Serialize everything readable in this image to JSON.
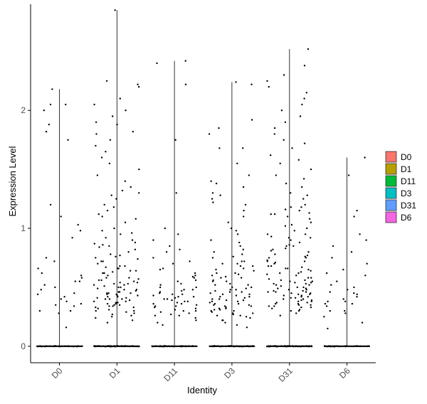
{
  "chart_data": {
    "type": "violin",
    "title": "",
    "xlabel": "Identity",
    "ylabel": "Expression Level",
    "ylim": [
      -0.14,
      2.9
    ],
    "yticks": [
      0,
      1,
      2
    ],
    "categories": [
      "D0",
      "D1",
      "D11",
      "D3",
      "D31",
      "D6"
    ],
    "category_colors": [
      "#F8766D",
      "#B79F00",
      "#00BA38",
      "#00BFC4",
      "#619CFF",
      "#F564E3"
    ],
    "violin_fill": "#ffffff",
    "legend": {
      "position": "right",
      "entries": [
        "D0",
        "D1",
        "D11",
        "D3",
        "D31",
        "D6"
      ]
    },
    "grid": false,
    "series": [
      {
        "category": "D0",
        "max": 2.18,
        "zero_count": 30,
        "points": [
          1.88,
          2.05,
          2.0,
          2.18,
          2.05,
          1.75,
          1.82,
          1.03,
          0.98,
          1.2,
          1.1,
          0.72,
          0.66,
          0.55,
          0.5,
          0.45,
          0.4,
          0.35,
          0.3,
          0.3,
          0.55,
          0.75,
          0.6,
          0.48,
          0.38,
          0.16,
          0.42,
          0.34,
          0.52,
          0.92,
          0.62,
          0.58,
          0.44,
          0.36,
          0.28
        ]
      },
      {
        "category": "D1",
        "max": 2.85,
        "zero_count": 55,
        "points": [
          2.85,
          2.25,
          2.2,
          2.05,
          2.0,
          1.95,
          1.88,
          1.82,
          1.8,
          1.75,
          1.6,
          1.55,
          1.5,
          1.45,
          1.4,
          1.35,
          1.3,
          1.25,
          1.2,
          1.15,
          1.1,
          1.05,
          1.0,
          0.98,
          0.95,
          0.9,
          0.88,
          0.85,
          0.82,
          0.8,
          0.78,
          0.75,
          0.72,
          0.7,
          0.68,
          0.66,
          0.64,
          0.62,
          0.6,
          0.58,
          0.56,
          0.55,
          0.54,
          0.53,
          0.52,
          0.51,
          0.5,
          0.49,
          0.48,
          0.47,
          0.46,
          0.45,
          0.44,
          0.43,
          0.42,
          0.41,
          0.4,
          0.39,
          0.38,
          0.37,
          0.36,
          0.35,
          0.34,
          0.33,
          0.32,
          0.31,
          0.3,
          0.29,
          0.28,
          0.27,
          0.26,
          0.25,
          0.24,
          0.22,
          0.2,
          0.72,
          0.62,
          0.52,
          0.42,
          0.36,
          0.48,
          0.58,
          0.68,
          0.44,
          0.38,
          0.34,
          1.12,
          1.18,
          0.92,
          0.86,
          0.76,
          0.66,
          0.56,
          0.46,
          0.4,
          0.35,
          0.3,
          0.43,
          0.53,
          0.63,
          2.22,
          2.1,
          1.9,
          1.7,
          1.65,
          1.28,
          1.32,
          1.08,
          0.96,
          0.84,
          0.74,
          0.64,
          0.54,
          0.45,
          0.41,
          0.37,
          0.33,
          0.57,
          0.67,
          0.77,
          0.87,
          0.5,
          0.45,
          0.4
        ]
      },
      {
        "category": "D11",
        "max": 2.42,
        "zero_count": 40,
        "points": [
          2.42,
          2.4,
          2.22,
          1.75,
          1.3,
          1.0,
          0.95,
          0.9,
          0.85,
          0.8,
          0.75,
          0.7,
          0.65,
          0.6,
          0.58,
          0.55,
          0.52,
          0.5,
          0.48,
          0.46,
          0.44,
          0.42,
          0.4,
          0.38,
          0.36,
          0.34,
          0.32,
          0.3,
          0.28,
          0.26,
          0.24,
          0.22,
          0.2,
          0.18,
          0.62,
          0.56,
          0.5,
          0.45,
          0.41,
          0.37,
          0.33,
          0.29,
          0.27,
          0.43,
          0.39,
          0.35,
          0.31,
          0.47,
          0.53,
          0.59,
          0.66,
          0.72,
          0.82,
          0.36,
          0.3,
          0.26,
          0.4,
          0.44,
          0.48,
          0.34,
          0.38,
          0.42
        ]
      },
      {
        "category": "D3",
        "max": 2.24,
        "zero_count": 45,
        "points": [
          2.24,
          2.22,
          1.92,
          1.85,
          1.8,
          1.68,
          1.68,
          1.55,
          1.45,
          1.4,
          1.38,
          1.35,
          1.3,
          1.25,
          1.2,
          1.15,
          1.1,
          1.05,
          1.0,
          0.95,
          0.9,
          0.85,
          0.8,
          0.75,
          0.72,
          0.7,
          0.68,
          0.65,
          0.62,
          0.6,
          0.58,
          0.55,
          0.52,
          0.5,
          0.48,
          0.46,
          0.44,
          0.42,
          0.4,
          0.38,
          0.36,
          0.34,
          0.32,
          0.3,
          0.28,
          0.26,
          0.24,
          0.22,
          0.2,
          0.18,
          0.16,
          0.62,
          0.56,
          0.5,
          0.45,
          0.41,
          0.37,
          0.33,
          0.29,
          0.27,
          0.43,
          0.39,
          0.35,
          0.31,
          0.47,
          0.53,
          0.59,
          0.66,
          0.72,
          0.82,
          0.36,
          0.3,
          0.26,
          0.4,
          0.44,
          0.48,
          0.34,
          0.38,
          0.42,
          0.52,
          0.58,
          0.64,
          0.7,
          0.76,
          0.22,
          0.25,
          0.28,
          0.31,
          0.35,
          1.22,
          1.28,
          0.98,
          0.88,
          0.78,
          0.68,
          0.61,
          0.55,
          0.49,
          0.46,
          0.39,
          0.32
        ]
      },
      {
        "category": "D31",
        "max": 2.52,
        "zero_count": 55,
        "points": [
          2.52,
          2.38,
          2.3,
          2.25,
          2.2,
          2.15,
          2.1,
          2.05,
          2.0,
          1.95,
          1.9,
          1.85,
          1.8,
          1.75,
          1.72,
          1.68,
          1.62,
          1.58,
          1.55,
          1.5,
          1.45,
          1.42,
          1.38,
          1.35,
          1.3,
          1.28,
          1.25,
          1.2,
          1.18,
          1.15,
          1.12,
          1.1,
          1.08,
          1.05,
          1.02,
          1.0,
          0.98,
          0.95,
          0.92,
          0.9,
          0.88,
          0.85,
          0.82,
          0.8,
          0.78,
          0.75,
          0.72,
          0.7,
          0.68,
          0.66,
          0.64,
          0.62,
          0.6,
          0.58,
          0.56,
          0.55,
          0.54,
          0.53,
          0.52,
          0.51,
          0.5,
          0.49,
          0.48,
          0.47,
          0.46,
          0.45,
          0.44,
          0.43,
          0.42,
          0.41,
          0.4,
          0.39,
          0.38,
          0.37,
          0.36,
          0.35,
          0.34,
          0.33,
          0.32,
          0.31,
          0.3,
          0.28,
          0.26,
          0.72,
          0.62,
          0.52,
          0.42,
          0.36,
          0.48,
          0.58,
          0.68,
          0.44,
          0.38,
          0.34,
          1.12,
          1.18,
          0.92,
          0.86,
          0.76,
          0.66,
          0.56,
          0.46,
          0.4,
          0.35,
          0.3,
          0.43,
          0.53,
          0.63,
          0.73,
          0.83,
          0.93,
          1.03,
          0.57,
          0.61,
          0.67,
          0.71,
          0.77,
          0.81,
          0.49,
          0.47,
          0.45,
          0.41,
          0.37,
          0.33,
          0.39,
          0.55,
          0.65,
          0.75,
          0.85,
          0.95,
          1.13,
          1.16,
          0.54,
          0.5,
          0.46
        ]
      },
      {
        "category": "D6",
        "max": 1.6,
        "zero_count": 30,
        "points": [
          1.6,
          1.45,
          1.15,
          1.1,
          0.95,
          0.9,
          0.85,
          0.8,
          0.75,
          0.7,
          0.65,
          0.6,
          0.55,
          0.5,
          0.48,
          0.45,
          0.42,
          0.4,
          0.38,
          0.36,
          0.34,
          0.3,
          0.25,
          0.2,
          0.15,
          0.62,
          0.52,
          0.44,
          0.36,
          0.3,
          0.28,
          0.38,
          0.46
        ]
      }
    ]
  }
}
